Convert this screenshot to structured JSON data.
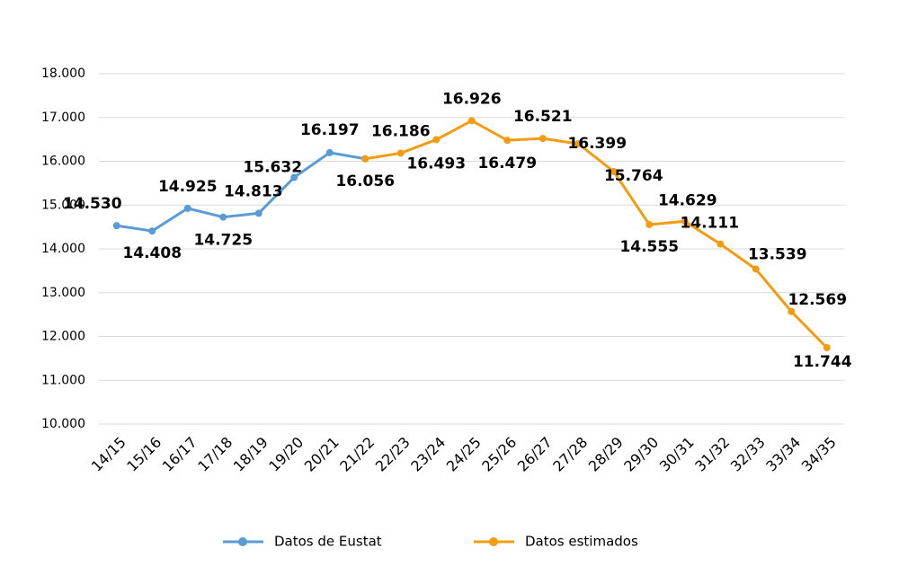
{
  "chart_data": {
    "type": "line",
    "categories": [
      "14/15",
      "15/16",
      "16/17",
      "17/18",
      "18/19",
      "19/20",
      "20/21",
      "21/22",
      "22/23",
      "23/24",
      "24/25",
      "25/26",
      "26/27",
      "27/28",
      "28/29",
      "29/30",
      "30/31",
      "31/32",
      "32/33",
      "33/34",
      "34/35"
    ],
    "series": [
      {
        "name": "Datos de Eustat",
        "color": "#5b9bd5",
        "values": [
          14530,
          14408,
          14925,
          14725,
          14813,
          15632,
          16197,
          16056,
          null,
          null,
          null,
          null,
          null,
          null,
          null,
          null,
          null,
          null,
          null,
          null,
          null
        ],
        "value_labels": [
          "14.530",
          "14.408",
          "14.925",
          "14.725",
          "14.813",
          "15.632",
          "16.197",
          "16.056",
          null,
          null,
          null,
          null,
          null,
          null,
          null,
          null,
          null,
          null,
          null,
          null,
          null
        ]
      },
      {
        "name": "Datos estimados",
        "color": "#f39c12",
        "values": [
          null,
          null,
          null,
          null,
          null,
          null,
          null,
          16056,
          16186,
          16493,
          16926,
          16479,
          16521,
          16399,
          15764,
          14555,
          14629,
          14111,
          13539,
          12569,
          11744
        ],
        "value_labels": [
          null,
          null,
          null,
          null,
          null,
          null,
          null,
          null,
          "16.186",
          "16.493",
          "16.926",
          "16.479",
          "16.521",
          "16.399",
          "15.764",
          "14.555",
          "14.629",
          "14.111",
          "13.539",
          "12.569",
          "11.744"
        ]
      }
    ],
    "ylim": [
      10000,
      18000
    ],
    "yticks": [
      {
        "value": 10000,
        "label": "10.000"
      },
      {
        "value": 11000,
        "label": "11.000"
      },
      {
        "value": 12000,
        "label": "12.000"
      },
      {
        "value": 13000,
        "label": "13.000"
      },
      {
        "value": 14000,
        "label": "14.000"
      },
      {
        "value": 15000,
        "label": "15.000"
      },
      {
        "value": 16000,
        "label": "16.000"
      },
      {
        "value": 17000,
        "label": "17.000"
      },
      {
        "value": 18000,
        "label": "18.000"
      }
    ],
    "grid": true
  }
}
